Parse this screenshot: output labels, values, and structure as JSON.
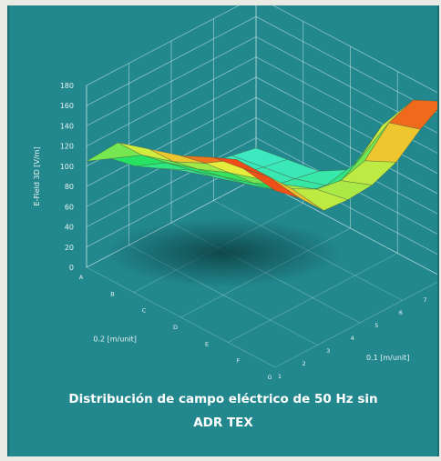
{
  "caption": {
    "line1": "Distribución de campo eléctrico de 50 Hz sin",
    "line2": "ADR TEX"
  },
  "chart_data": {
    "type": "surface-3d",
    "zlabel": "E-Field 3D [V/m]",
    "xlabel": "0.2 [m/unit]",
    "ylabel": "0.1 [m/unit]",
    "zlim": [
      0,
      180
    ],
    "z_ticks": [
      "180",
      "160",
      "140",
      "120",
      "100",
      "80",
      "60",
      "40",
      "20",
      "0"
    ],
    "x_ticks": [
      "A",
      "B",
      "C",
      "D",
      "E",
      "F",
      "G"
    ],
    "y_ticks": [
      "1",
      "2",
      "3",
      "4",
      "5",
      "6",
      "7",
      "8"
    ],
    "grid": true,
    "z": [
      [
        105,
        95,
        75,
        60,
        45,
        40,
        35,
        30
      ],
      [
        140,
        115,
        95,
        75,
        55,
        45,
        40,
        35
      ],
      [
        150,
        125,
        105,
        85,
        65,
        50,
        45,
        40
      ],
      [
        160,
        140,
        118,
        95,
        75,
        60,
        55,
        58
      ],
      [
        175,
        160,
        128,
        110,
        90,
        80,
        95,
        118
      ],
      [
        180,
        160,
        135,
        122,
        118,
        125,
        150,
        160
      ],
      [
        175,
        155,
        130,
        128,
        130,
        140,
        160,
        175
      ]
    ],
    "colors": {
      "low": "#3fe8c8",
      "mid": "#27e35f",
      "high": "#ecec3a",
      "peak": "#ee1c14",
      "background": "#22888e"
    }
  }
}
